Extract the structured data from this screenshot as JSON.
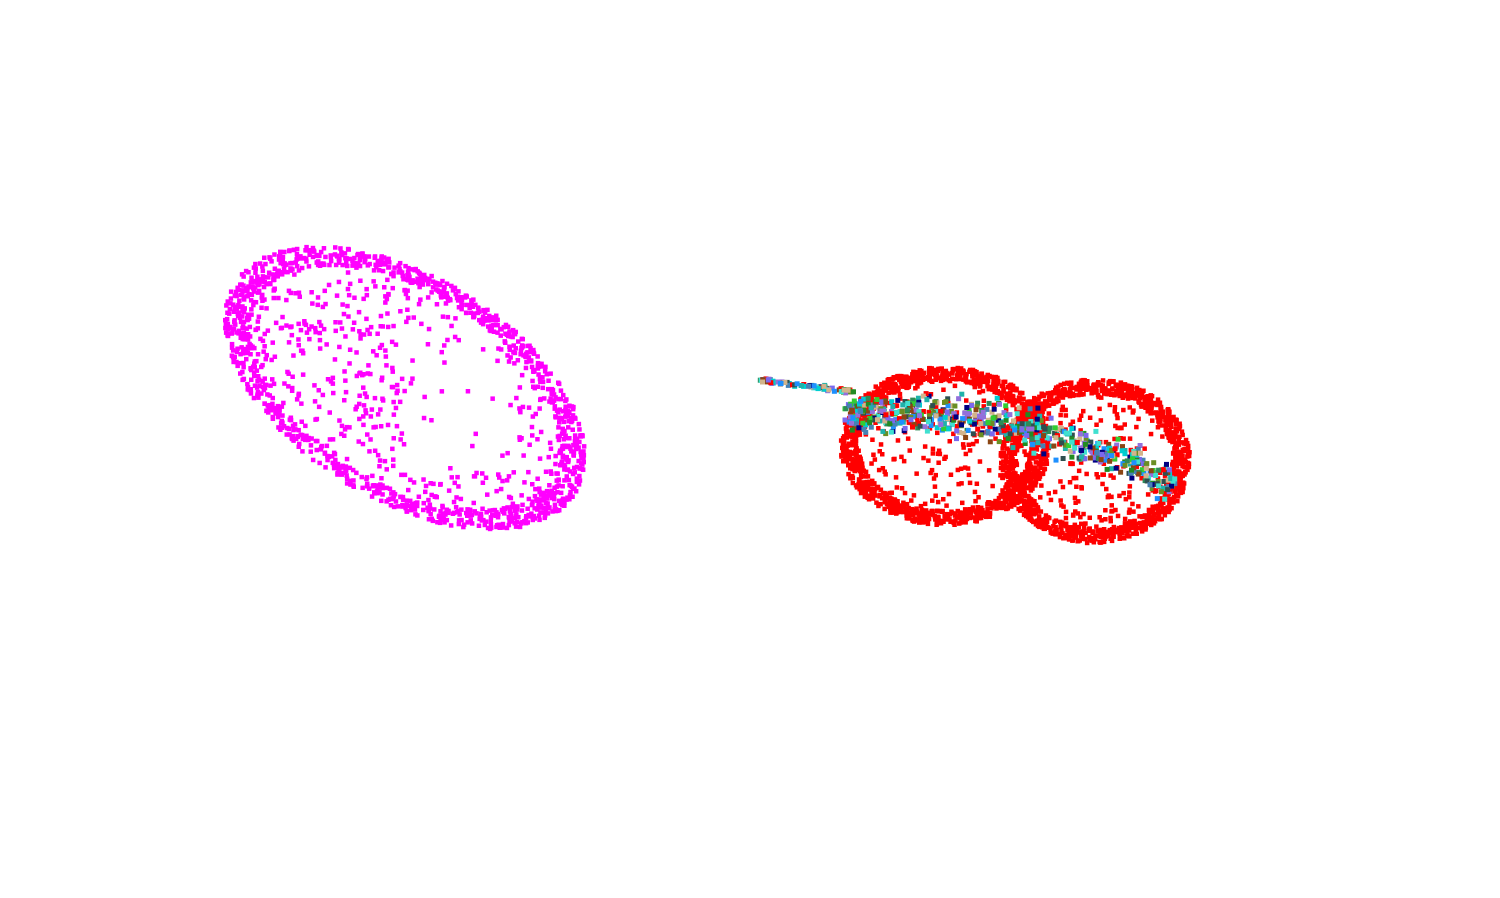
{
  "scene": {
    "background": "#ffffff",
    "clouds": [
      {
        "name": "left-point-cloud",
        "colors": [
          "#ff00ff"
        ],
        "point_count": 1700
      },
      {
        "name": "right-point-cloud",
        "colors": [
          "#ff0000"
        ],
        "point_count": 2600
      },
      {
        "name": "inner-multicolor-point-cloud",
        "colors": [
          "#1e90ff",
          "#2e8b57",
          "#7b68ee",
          "#40e0d0",
          "#228b22",
          "#9370db",
          "#000080",
          "#20b2aa",
          "#6b8e23",
          "#4682b4",
          "#2f4f4f",
          "#00ced1",
          "#8b4513",
          "#d2b48c",
          "#32cd32",
          "#ff0000"
        ],
        "point_count": 700
      }
    ]
  }
}
